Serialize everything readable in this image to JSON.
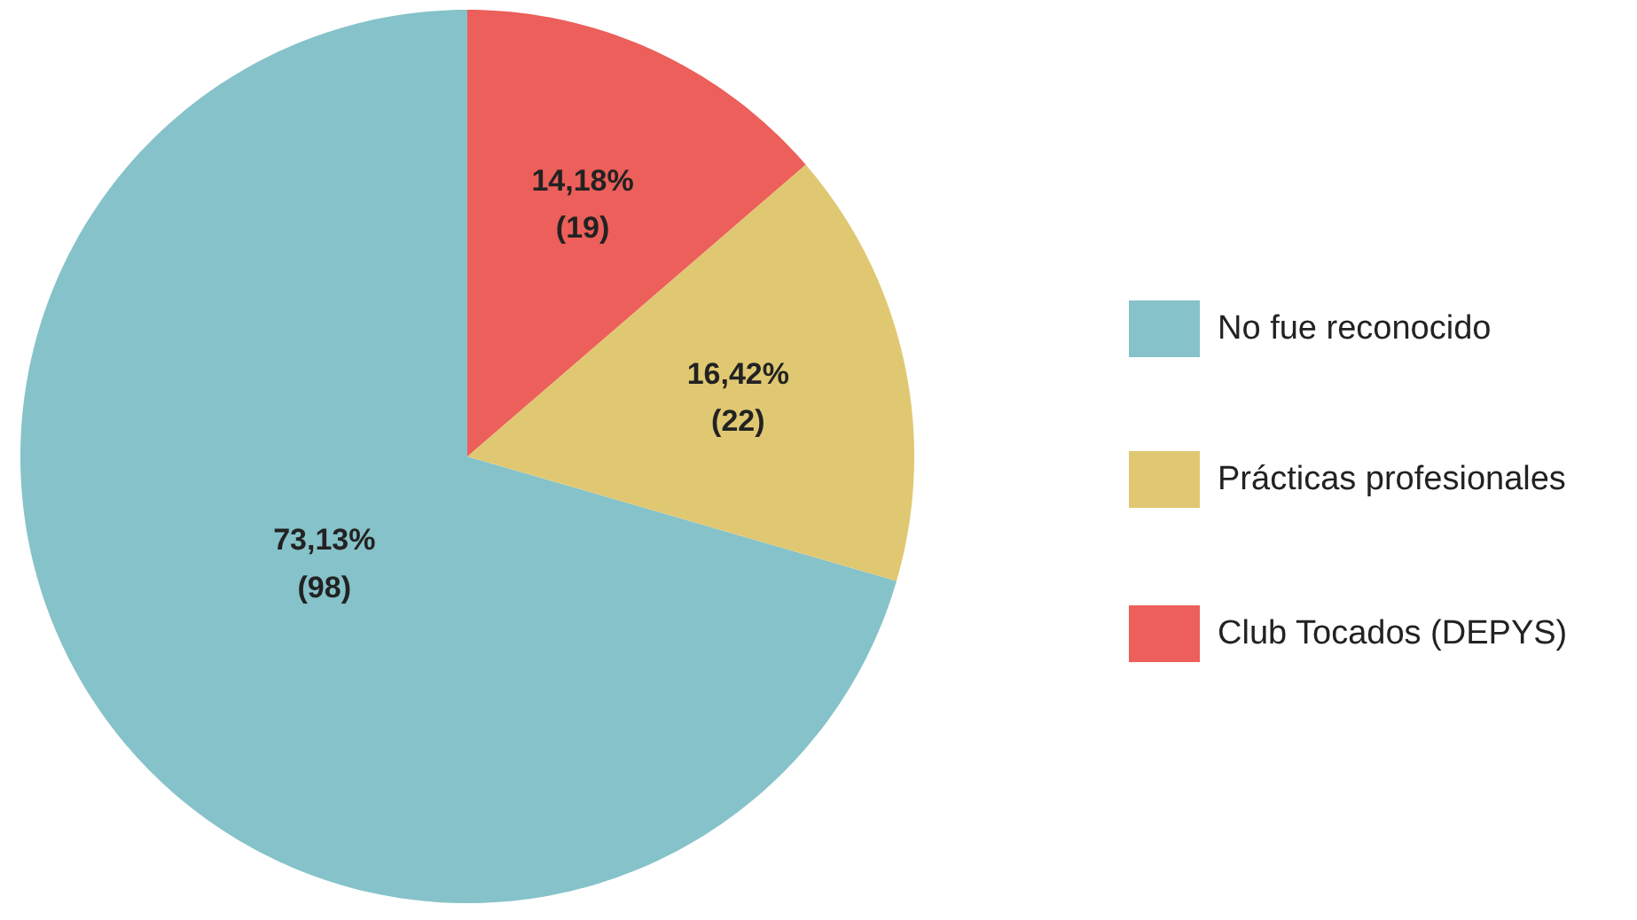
{
  "chart_data": {
    "type": "pie",
    "categories": [
      "No fue reconocido",
      "Prácticas profesionales",
      "Club Tocados (DEPYS)"
    ],
    "values": [
      98,
      22,
      19
    ],
    "colors": [
      "#86c2c9",
      "#e0c872",
      "#ec5f5a"
    ],
    "value_labels": [
      "73,13%\n(98)",
      "16,42%\n(22)",
      "14,18%\n(19)"
    ],
    "legend": "right"
  }
}
